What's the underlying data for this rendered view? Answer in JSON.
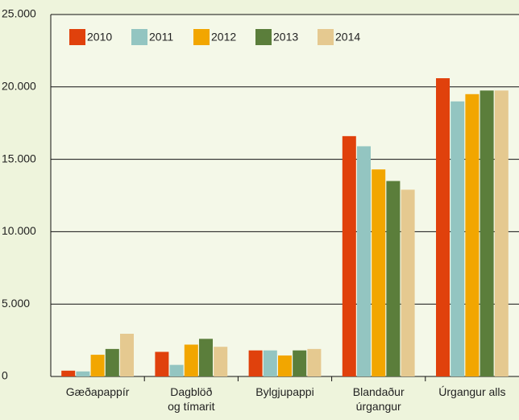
{
  "chart_data": {
    "type": "bar",
    "categories": [
      "Gæðapappír",
      "Dagblöð\nog tímarit",
      "Bylgjupappi",
      "Blandaður\núrgangur",
      "Úrgangur alls"
    ],
    "series": [
      {
        "name": "2010",
        "color": "#e0410c",
        "values": [
          400,
          1700,
          1800,
          16600,
          20600
        ]
      },
      {
        "name": "2011",
        "color": "#93c5c1",
        "values": [
          350,
          800,
          1800,
          15900,
          19000
        ]
      },
      {
        "name": "2012",
        "color": "#f2a600",
        "values": [
          1500,
          2200,
          1450,
          14300,
          19500
        ]
      },
      {
        "name": "2013",
        "color": "#5b7e3b",
        "values": [
          1900,
          2600,
          1800,
          13500,
          19750
        ]
      },
      {
        "name": "2014",
        "color": "#e5c990",
        "values": [
          2950,
          2050,
          1900,
          12900,
          19750
        ]
      }
    ],
    "ylim": [
      0,
      25000
    ],
    "yticks": [
      0,
      {
        "value": 5000,
        "label": "5.000"
      },
      {
        "value": 10000,
        "label": "10.000"
      },
      {
        "value": 15000,
        "label": "15.000"
      },
      {
        "value": 20000,
        "label": "20.000"
      },
      {
        "value": 25000,
        "label": "25.000"
      }
    ],
    "grid": true
  }
}
